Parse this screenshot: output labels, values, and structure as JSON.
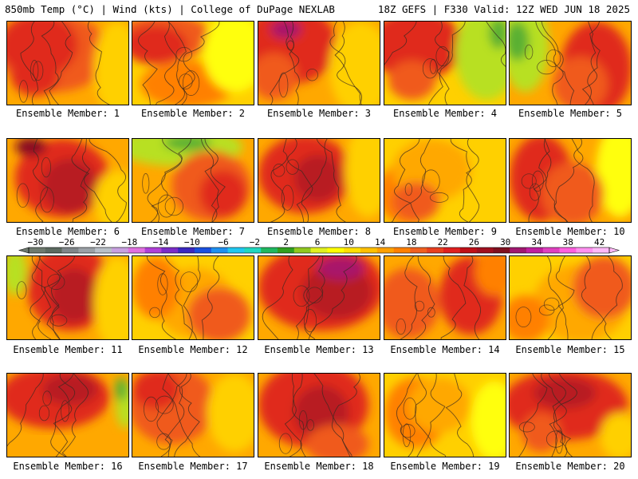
{
  "header": {
    "left": "850mb Temp (°C) | Wind (kts) | College of DuPage NEXLAB",
    "right": "18Z GEFS | F330 Valid: 12Z WED JUN 18 2025"
  },
  "panels": [
    {
      "label": "Ensemble Member: 1"
    },
    {
      "label": "Ensemble Member: 2"
    },
    {
      "label": "Ensemble Member: 3"
    },
    {
      "label": "Ensemble Member: 4"
    },
    {
      "label": "Ensemble Member: 5"
    },
    {
      "label": "Ensemble Member: 6"
    },
    {
      "label": "Ensemble Member: 7"
    },
    {
      "label": "Ensemble Member: 8"
    },
    {
      "label": "Ensemble Member: 9"
    },
    {
      "label": "Ensemble Member: 10"
    },
    {
      "label": "Ensemble Member: 11"
    },
    {
      "label": "Ensemble Member: 12"
    },
    {
      "label": "Ensemble Member: 13"
    },
    {
      "label": "Ensemble Member: 14"
    },
    {
      "label": "Ensemble Member: 15"
    },
    {
      "label": "Ensemble Member: 16"
    },
    {
      "label": "Ensemble Member: 17"
    },
    {
      "label": "Ensemble Member: 18"
    },
    {
      "label": "Ensemble Member: 19"
    },
    {
      "label": "Ensemble Member: 20"
    }
  ],
  "colorbar": {
    "tick_labels": [
      "−30",
      "−26",
      "−22",
      "−18",
      "−14",
      "−10",
      "−6",
      "−2",
      "2",
      "6",
      "10",
      "14",
      "18",
      "22",
      "26",
      "30",
      "34",
      "38",
      "42"
    ],
    "colors": [
      "#6e7a6e",
      "#5c6a60",
      "#80868a",
      "#9aa0a6",
      "#b8c0c8",
      "#c8a0e0",
      "#e070e0",
      "#b040d8",
      "#7a2cc8",
      "#3a28c0",
      "#1a50e0",
      "#1e90f0",
      "#20c8f0",
      "#20d8c0",
      "#20b860",
      "#30a020",
      "#90c820",
      "#e0f020",
      "#ffff00",
      "#ffe000",
      "#ffc000",
      "#ffa000",
      "#ff8000",
      "#f06020",
      "#e84020",
      "#e02020",
      "#c01018",
      "#a01020",
      "#801020",
      "#a01870",
      "#c020a0",
      "#e040c0",
      "#ff60e0",
      "#ff90f0",
      "#ffb8f8"
    ]
  },
  "map_palette": {
    "yellow": "#ffff10",
    "gold": "#ffd000",
    "orange": "#ffa800",
    "dark_orange": "#ff8000",
    "red_orange": "#f05a1a",
    "red": "#e02a1a",
    "crimson": "#b81a20",
    "dark_red": "#8a1020",
    "magenta": "#a8186a",
    "green": "#5ab030",
    "lime": "#b8e020",
    "contour": "#3a2a20"
  }
}
